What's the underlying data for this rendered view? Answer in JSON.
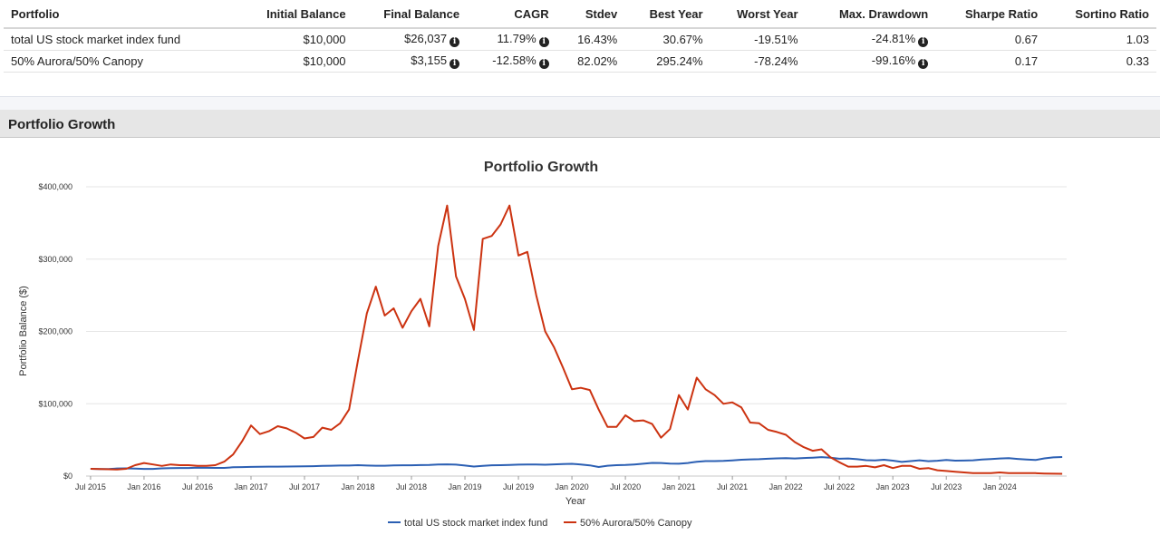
{
  "summary_table": {
    "headers": [
      "Portfolio",
      "Initial Balance",
      "Final Balance",
      "CAGR",
      "Stdev",
      "Best Year",
      "Worst Year",
      "Max. Drawdown",
      "Sharpe Ratio",
      "Sortino Ratio"
    ],
    "rows": [
      {
        "portfolio": "total US stock market index fund",
        "initial_balance": "$10,000",
        "final_balance": "$26,037",
        "cagr": "11.79%",
        "stdev": "16.43%",
        "best_year": "30.67%",
        "worst_year": "-19.51%",
        "max_drawdown": "-24.81%",
        "sharpe": "0.67",
        "sortino": "1.03"
      },
      {
        "portfolio": "50% Aurora/50% Canopy",
        "initial_balance": "$10,000",
        "final_balance": "$3,155",
        "cagr": "-12.58%",
        "stdev": "82.02%",
        "best_year": "295.24%",
        "worst_year": "-78.24%",
        "max_drawdown": "-99.16%",
        "sharpe": "0.17",
        "sortino": "0.33"
      }
    ],
    "info_icon": "info-circle-icon"
  },
  "section": {
    "title": "Portfolio Growth"
  },
  "chart_data": {
    "type": "line",
    "title": "Portfolio Growth",
    "xlabel": "Year",
    "ylabel": "Portfolio Balance ($)",
    "ylim": [
      0,
      400000
    ],
    "yticks": [
      "$0",
      "$100,000",
      "$200,000",
      "$300,000",
      "$400,000"
    ],
    "xticks": [
      "Jul 2015",
      "Jan 2016",
      "Jul 2016",
      "Jan 2017",
      "Jul 2017",
      "Jan 2018",
      "Jul 2018",
      "Jan 2019",
      "Jul 2019",
      "Jan 2020",
      "Jul 2020",
      "Jan 2021",
      "Jul 2021",
      "Jan 2022",
      "Jul 2022",
      "Jan 2023",
      "Jul 2023",
      "Jan 2024"
    ],
    "x_start": "Jul 2015",
    "x_frequency": "monthly",
    "grid": true,
    "legend_position": "bottom-center",
    "series": [
      {
        "name": "total US stock market index fund",
        "color": "#2b5fb3",
        "values": [
          10000,
          9600,
          9700,
          10500,
          10600,
          10300,
          9900,
          9900,
          10700,
          11000,
          11100,
          11100,
          11500,
          11400,
          11300,
          11300,
          12200,
          12400,
          12700,
          12900,
          13000,
          13000,
          13200,
          13300,
          13500,
          13700,
          14000,
          14300,
          14500,
          14500,
          15100,
          14500,
          14300,
          14300,
          14700,
          14900,
          14900,
          15200,
          15400,
          16000,
          16200,
          15800,
          14500,
          13200,
          14200,
          14900,
          15000,
          15400,
          15800,
          16000,
          16100,
          15700,
          16200,
          16500,
          16900,
          16100,
          14800,
          12500,
          14300,
          15000,
          15300,
          16100,
          17000,
          18200,
          18000,
          17300,
          17000,
          18100,
          19800,
          20700,
          20700,
          21000,
          21700,
          22600,
          23100,
          23300,
          23900,
          24500,
          24800,
          24300,
          25000,
          25500,
          26200,
          25400,
          24000,
          24300,
          23300,
          22000,
          21700,
          22600,
          21300,
          19600,
          20700,
          21800,
          20600,
          21200,
          22300,
          21300,
          21400,
          21800,
          22900,
          23600,
          24300,
          24700,
          23700,
          22800,
          22200,
          24400,
          25800,
          26300
        ]
      },
      {
        "name": "50% Aurora/50% Canopy",
        "color": "#cc3311",
        "values": [
          10000,
          9800,
          9400,
          9000,
          10000,
          15000,
          18000,
          16000,
          14000,
          16000,
          15000,
          15000,
          14000,
          14000,
          15000,
          20000,
          30000,
          48000,
          70000,
          58000,
          62000,
          69000,
          66000,
          60000,
          52000,
          54000,
          67000,
          64000,
          73000,
          92000,
          160000,
          225000,
          262000,
          222000,
          232000,
          205000,
          228000,
          245000,
          207000,
          318000,
          374000,
          276000,
          245000,
          202000,
          328000,
          332000,
          348000,
          374000,
          305000,
          310000,
          250000,
          200000,
          178000,
          150000,
          120000,
          122000,
          119000,
          92000,
          68000,
          68000,
          84000,
          76000,
          77000,
          72000,
          53000,
          65000,
          112000,
          92000,
          136000,
          120000,
          112000,
          100000,
          102000,
          95000,
          74000,
          73000,
          64000,
          61000,
          57000,
          47000,
          40000,
          35000,
          37000,
          26000,
          19000,
          13000,
          13000,
          14000,
          12000,
          15000,
          11000,
          14000,
          14000,
          10000,
          11000,
          8000,
          7000,
          6000,
          5000,
          4000,
          4000,
          4000,
          5000,
          4000,
          4000,
          4000,
          4000,
          3500,
          3300,
          3155
        ]
      }
    ]
  }
}
